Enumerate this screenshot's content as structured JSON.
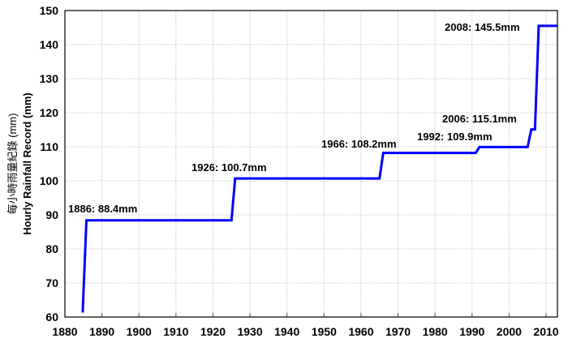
{
  "chart_data": {
    "type": "line",
    "title": "",
    "xlabel": "",
    "ylabel": "Hourly Rainfall Record (mm)",
    "ylabel_cjk": "每小時雨量紀錄 (mm)",
    "xlim": [
      1880,
      2013
    ],
    "ylim": [
      60,
      150
    ],
    "x_ticks": [
      1880,
      1890,
      1900,
      1910,
      1920,
      1930,
      1940,
      1950,
      1960,
      1970,
      1980,
      1990,
      2000,
      2010
    ],
    "y_ticks": [
      60,
      70,
      80,
      90,
      100,
      110,
      120,
      130,
      140,
      150
    ],
    "grid": true,
    "line_color": "#0000ff",
    "series": [
      {
        "name": "Hourly Rainfall Record",
        "step": true,
        "x": [
          1884.8,
          1885.8,
          1925.0,
          1926.0,
          1965.0,
          1966.0,
          1991.0,
          1992.0,
          2005.0,
          2006.0,
          2007.0,
          2008.0,
          2013.0
        ],
        "y": [
          61.3,
          88.4,
          88.4,
          100.7,
          100.7,
          108.2,
          108.2,
          109.9,
          109.9,
          115.1,
          115.1,
          145.5,
          145.5
        ]
      }
    ],
    "annotations": [
      {
        "text": "1886: 88.4mm",
        "year": 1886,
        "value": 88.4
      },
      {
        "text": "1926: 100.7mm",
        "year": 1926,
        "value": 100.7
      },
      {
        "text": "1966: 108.2mm",
        "year": 1966,
        "value": 108.2
      },
      {
        "text": "1992: 109.9mm",
        "year": 1992,
        "value": 109.9
      },
      {
        "text": "2006: 115.1mm",
        "year": 2006,
        "value": 115.1
      },
      {
        "text": "2008: 145.5mm",
        "year": 2008,
        "value": 145.5
      }
    ]
  }
}
